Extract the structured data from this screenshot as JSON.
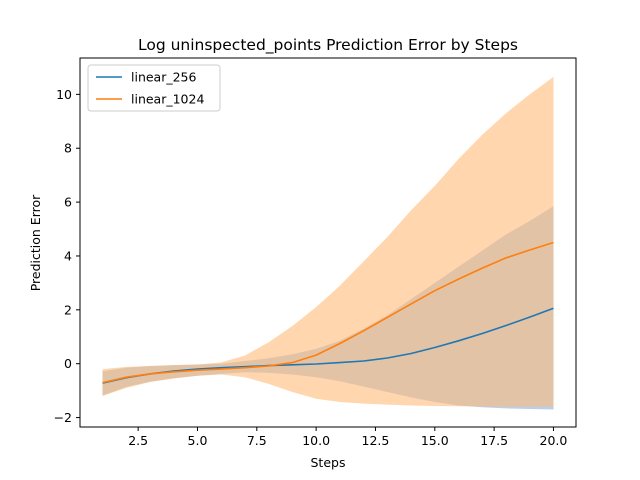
{
  "chart_data": {
    "type": "line",
    "title": "Log uninspected_points Prediction Error by Steps",
    "xlabel": "Steps",
    "ylabel": "Prediction Error",
    "xlim": [
      0.05,
      20.95
    ],
    "ylim": [
      -2.35,
      11.35
    ],
    "x_ticks": [
      2.5,
      5.0,
      7.5,
      10.0,
      12.5,
      15.0,
      17.5,
      20.0
    ],
    "x_tick_labels": [
      "2.5",
      "5.0",
      "7.5",
      "10.0",
      "12.5",
      "15.0",
      "17.5",
      "20.0"
    ],
    "y_ticks": [
      -2,
      0,
      2,
      4,
      6,
      8,
      10
    ],
    "y_tick_labels": [
      "−2",
      "0",
      "2",
      "4",
      "6",
      "8",
      "10"
    ],
    "grid": false,
    "legend_position": "top-left",
    "x": [
      1,
      2,
      3,
      4,
      5,
      6,
      7,
      8,
      9,
      10,
      11,
      12,
      13,
      14,
      15,
      16,
      17,
      18,
      19,
      20
    ],
    "series": [
      {
        "name": "linear_256",
        "color": "#1f77b4",
        "band_color": "#aec7e8",
        "values": [
          -0.72,
          -0.52,
          -0.38,
          -0.27,
          -0.2,
          -0.15,
          -0.11,
          -0.07,
          -0.04,
          -0.01,
          0.04,
          0.1,
          0.21,
          0.38,
          0.6,
          0.85,
          1.12,
          1.42,
          1.73,
          2.06
        ],
        "upper": [
          -0.28,
          -0.15,
          -0.09,
          -0.05,
          -0.03,
          0.0,
          0.1,
          0.2,
          0.35,
          0.55,
          0.85,
          1.3,
          1.8,
          2.4,
          3.0,
          3.6,
          4.2,
          4.8,
          5.3,
          5.85
        ],
        "lower": [
          -1.18,
          -0.86,
          -0.67,
          -0.54,
          -0.45,
          -0.38,
          -0.32,
          -0.34,
          -0.4,
          -0.5,
          -0.65,
          -0.85,
          -1.05,
          -1.25,
          -1.42,
          -1.55,
          -1.62,
          -1.66,
          -1.68,
          -1.7
        ]
      },
      {
        "name": "linear_1024",
        "color": "#ff7f0e",
        "band_color": "#ffbb78",
        "values": [
          -0.7,
          -0.5,
          -0.38,
          -0.3,
          -0.24,
          -0.2,
          -0.15,
          -0.08,
          0.04,
          0.32,
          0.75,
          1.22,
          1.72,
          2.22,
          2.71,
          3.14,
          3.55,
          3.93,
          4.22,
          4.5
        ],
        "upper": [
          -0.2,
          -0.12,
          -0.08,
          -0.05,
          -0.03,
          0.05,
          0.3,
          0.8,
          1.4,
          2.1,
          2.9,
          3.8,
          4.7,
          5.7,
          6.6,
          7.6,
          8.5,
          9.3,
          10.0,
          10.65
        ],
        "lower": [
          -1.2,
          -0.9,
          -0.68,
          -0.55,
          -0.45,
          -0.4,
          -0.5,
          -0.75,
          -1.05,
          -1.3,
          -1.42,
          -1.48,
          -1.52,
          -1.55,
          -1.57,
          -1.58,
          -1.59,
          -1.6,
          -1.6,
          -1.6
        ]
      }
    ]
  }
}
